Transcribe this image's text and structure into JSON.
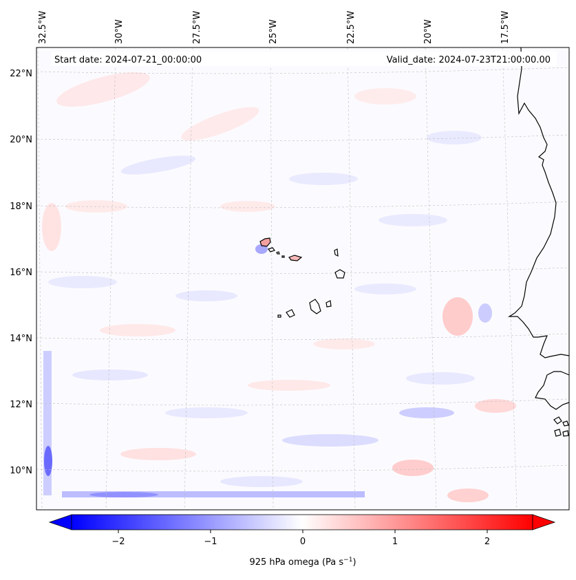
{
  "map": {
    "header": {
      "start_date": "Start date: 2024-07-21_00:00:00",
      "valid_date": "Valid_date: 2024-07-23T21:00:00.00"
    },
    "lon_labels": [
      "32.5°W",
      "30°W",
      "27.5°W",
      "25°W",
      "22.5°W",
      "20°W",
      "17.5°W"
    ],
    "lat_labels": [
      "22°N",
      "20°N",
      "18°N",
      "16°N",
      "14°N",
      "12°N",
      "10°N"
    ],
    "colorbar": {
      "ticks": [
        "−2",
        "−1",
        "0",
        "1",
        "2"
      ],
      "label": "925 hPa omega (Pa s",
      "label_superscript": "−1",
      "label_suffix": ")",
      "min": -2.6,
      "max": 2.6,
      "colors": {
        "negative": "#0000ff",
        "zero": "#ffffff",
        "positive": "#ff0000"
      }
    }
  }
}
